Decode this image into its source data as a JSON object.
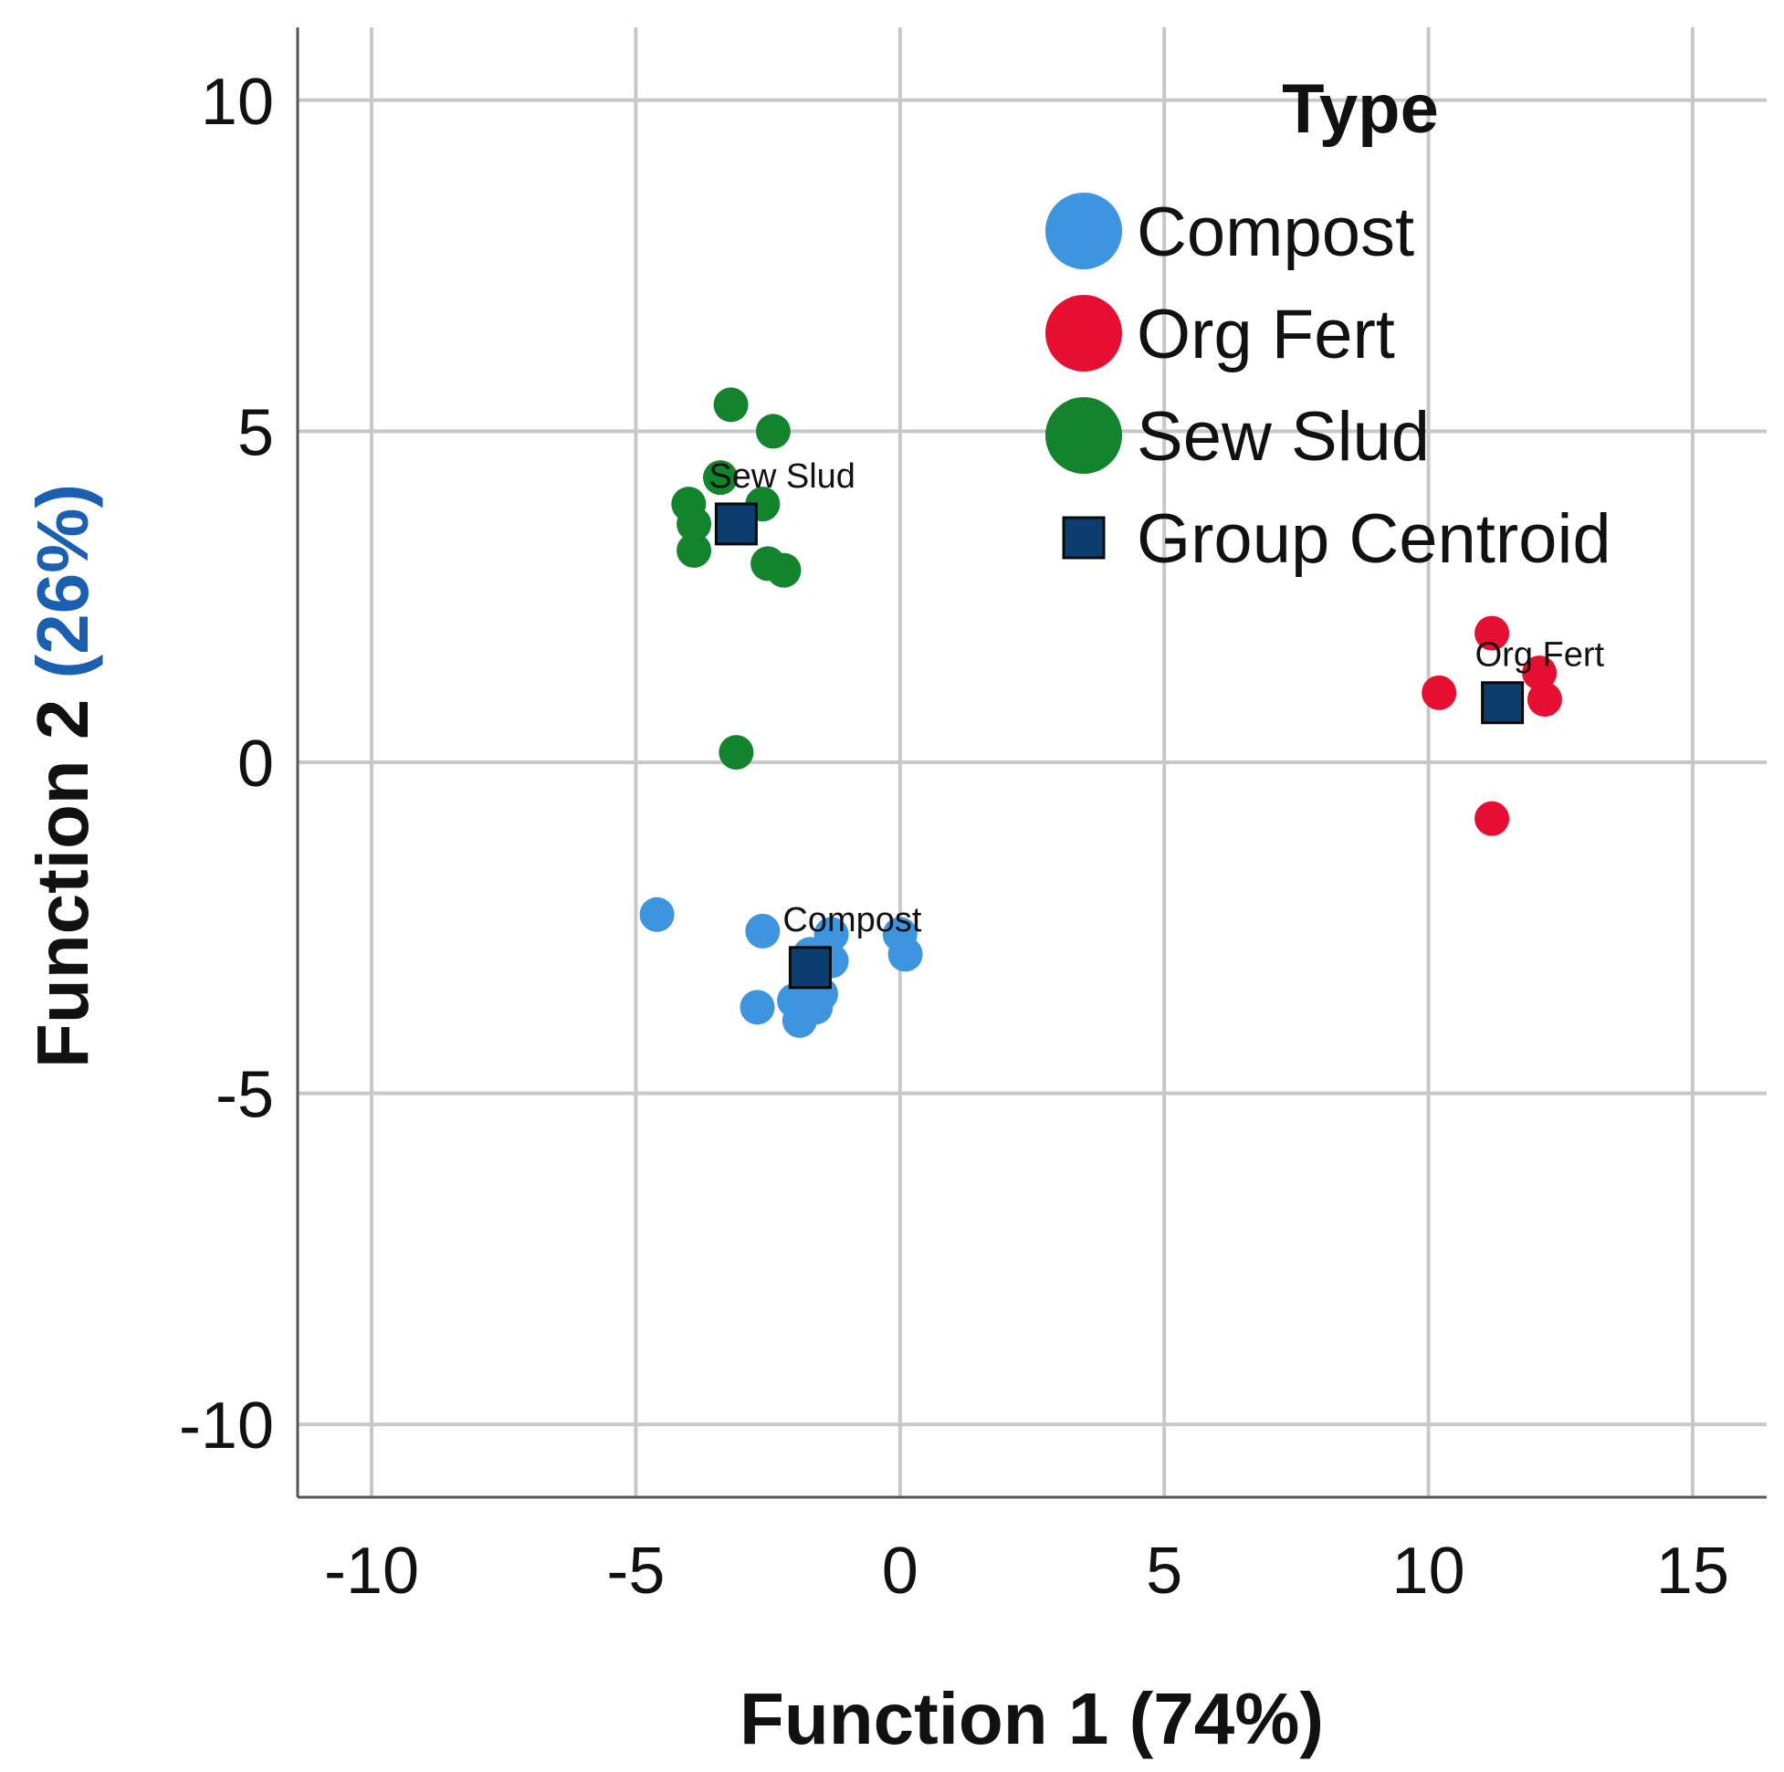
{
  "chart_data": {
    "type": "scatter",
    "title": "",
    "xlabel": "Function 1 (74%)",
    "ylabel_parts": {
      "main": "Function 2 ",
      "pct": "(26%)"
    },
    "xlim": [
      -11.4,
      16.4
    ],
    "ylim": [
      -11.1,
      11.1
    ],
    "x_ticks": [
      -10,
      -5,
      0,
      5,
      10,
      15
    ],
    "y_ticks": [
      -10,
      -5,
      0,
      5,
      10
    ],
    "x_tick_labels": [
      "-10",
      "-5",
      "0",
      "5",
      "10",
      "15"
    ],
    "y_tick_labels": [
      "-10",
      "-5",
      "0",
      "5",
      "10"
    ],
    "grid": true,
    "legend": {
      "title": "Type",
      "position": "top-right",
      "entries": [
        {
          "label": "Compost",
          "color": "#3d95df",
          "marker": "circle"
        },
        {
          "label": "Org Fert",
          "color": "#e60f32",
          "marker": "circle"
        },
        {
          "label": "Sew Slud",
          "color": "#14832d",
          "marker": "circle"
        },
        {
          "label": "Group Centroid",
          "color": "#0b3d6e",
          "marker": "square"
        }
      ]
    },
    "series": [
      {
        "name": "Compost",
        "color": "#3d95df",
        "points": [
          [
            -4.6,
            -2.3
          ],
          [
            -2.6,
            -2.55
          ],
          [
            -1.3,
            -2.6
          ],
          [
            -1.7,
            -2.9
          ],
          [
            -1.3,
            -3.0
          ],
          [
            -2.0,
            -3.6
          ],
          [
            -1.5,
            -3.5
          ],
          [
            -2.7,
            -3.7
          ],
          [
            -1.9,
            -3.9
          ],
          [
            -1.6,
            -3.7
          ],
          [
            0.0,
            -2.6
          ],
          [
            0.1,
            -2.9
          ]
        ]
      },
      {
        "name": "Org Fert",
        "color": "#e60f32",
        "points": [
          [
            11.2,
            1.95
          ],
          [
            12.1,
            1.35
          ],
          [
            10.2,
            1.05
          ],
          [
            12.2,
            0.95
          ],
          [
            11.2,
            -0.85
          ]
        ]
      },
      {
        "name": "Sew Slud",
        "color": "#14832d",
        "points": [
          [
            -3.2,
            5.4
          ],
          [
            -2.4,
            5.0
          ],
          [
            -3.4,
            4.3
          ],
          [
            -4.0,
            3.9
          ],
          [
            -2.6,
            3.9
          ],
          [
            -3.9,
            3.6
          ],
          [
            -3.9,
            3.2
          ],
          [
            -2.5,
            3.0
          ],
          [
            -2.2,
            2.9
          ],
          [
            -3.1,
            0.15
          ]
        ]
      }
    ],
    "centroids": [
      {
        "label": "Sew Slud",
        "x": -3.1,
        "y": 3.6
      },
      {
        "label": "Org Fert",
        "x": 11.4,
        "y": 0.9
      },
      {
        "label": "Compost",
        "x": -1.7,
        "y": -3.1
      }
    ]
  }
}
